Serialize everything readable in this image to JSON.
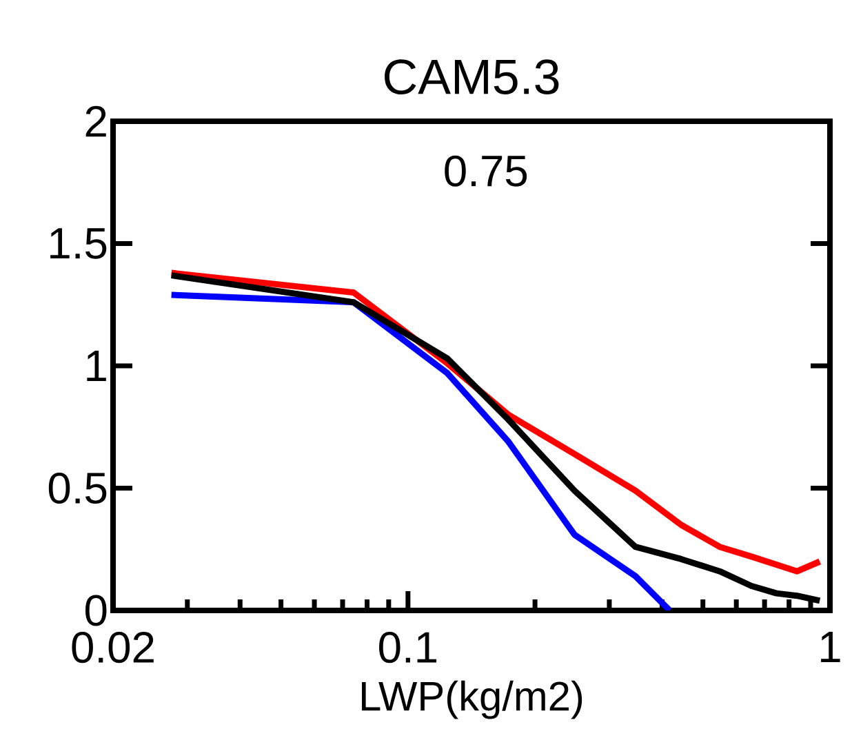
{
  "chart_data": {
    "type": "line",
    "title": "CAM5.3",
    "xlabel": "LWP(kg/m2)",
    "annotations": [
      "0.75"
    ],
    "log": "x",
    "xlim": [
      0.02,
      1
    ],
    "ylim": [
      0,
      2
    ],
    "xticks": [
      0.02,
      0.1,
      1
    ],
    "yticks": [
      0,
      0.5,
      1,
      1.5,
      2
    ],
    "grid": false,
    "marker": "none",
    "line_style": "solid",
    "series": [
      {
        "color": "#ff0000",
        "x": [
          0.0275,
          0.0743,
          0.124,
          0.173,
          0.248,
          0.346,
          0.444,
          0.548,
          0.652,
          0.836,
          0.946
        ],
        "values": [
          1.38,
          1.3,
          1.01,
          0.8,
          0.64,
          0.49,
          0.35,
          0.26,
          0.22,
          0.16,
          0.2
        ]
      },
      {
        "color": "#0000ff",
        "x": [
          0.0275,
          0.0743,
          0.124,
          0.173,
          0.248,
          0.346,
          0.417
        ],
        "values": [
          1.29,
          1.26,
          0.97,
          0.69,
          0.31,
          0.14,
          0
        ]
      },
      {
        "color": "#000000",
        "x": [
          0.0275,
          0.0743,
          0.124,
          0.173,
          0.248,
          0.346,
          0.444,
          0.548,
          0.652,
          0.747,
          0.836,
          0.946
        ],
        "values": [
          1.37,
          1.26,
          1.03,
          0.78,
          0.49,
          0.26,
          0.21,
          0.16,
          0.1,
          0.07,
          0.06,
          0.04
        ]
      }
    ]
  }
}
